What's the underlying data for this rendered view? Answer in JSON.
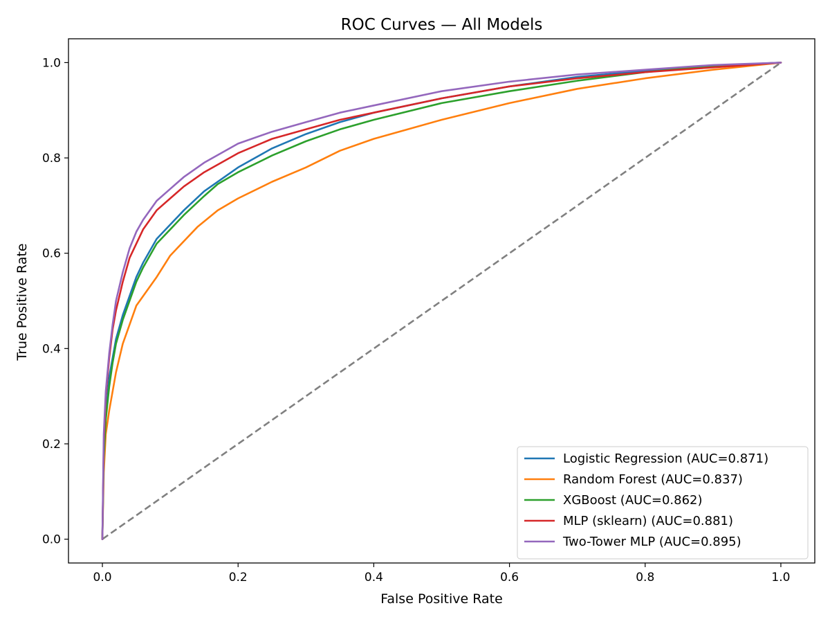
{
  "chart_data": {
    "type": "line",
    "title": "ROC Curves — All Models",
    "xlabel": "False Positive Rate",
    "ylabel": "True Positive Rate",
    "xlim": [
      -0.05,
      1.05
    ],
    "ylim": [
      -0.05,
      1.05
    ],
    "xticks": [
      0.0,
      0.2,
      0.4,
      0.6,
      0.8,
      1.0
    ],
    "yticks": [
      0.0,
      0.2,
      0.4,
      0.6,
      0.8,
      1.0
    ],
    "xtick_labels": [
      "0.0",
      "0.2",
      "0.4",
      "0.6",
      "0.8",
      "1.0"
    ],
    "ytick_labels": [
      "0.0",
      "0.2",
      "0.4",
      "0.6",
      "0.8",
      "1.0"
    ],
    "grid": false,
    "legend_position": "lower-right",
    "series": [
      {
        "name": "Logistic Regression (AUC=0.871)",
        "color": "#1f77b4",
        "x": [
          0,
          0.002,
          0.005,
          0.01,
          0.015,
          0.02,
          0.03,
          0.04,
          0.05,
          0.06,
          0.08,
          0.1,
          0.12,
          0.15,
          0.2,
          0.25,
          0.3,
          0.35,
          0.4,
          0.5,
          0.6,
          0.7,
          0.8,
          0.9,
          1.0
        ],
        "y": [
          0,
          0.18,
          0.26,
          0.34,
          0.38,
          0.42,
          0.47,
          0.51,
          0.55,
          0.58,
          0.63,
          0.66,
          0.69,
          0.73,
          0.78,
          0.82,
          0.85,
          0.875,
          0.895,
          0.925,
          0.95,
          0.97,
          0.983,
          0.993,
          1.0
        ]
      },
      {
        "name": "Random Forest (AUC=0.837)",
        "color": "#ff7f0e",
        "x": [
          0,
          0.002,
          0.005,
          0.01,
          0.015,
          0.02,
          0.03,
          0.04,
          0.05,
          0.06,
          0.08,
          0.1,
          0.14,
          0.17,
          0.2,
          0.25,
          0.3,
          0.35,
          0.4,
          0.45,
          0.5,
          0.6,
          0.7,
          0.8,
          0.9,
          1.0
        ],
        "y": [
          0,
          0.14,
          0.22,
          0.27,
          0.31,
          0.35,
          0.41,
          0.45,
          0.49,
          0.51,
          0.55,
          0.595,
          0.655,
          0.69,
          0.715,
          0.75,
          0.78,
          0.815,
          0.84,
          0.86,
          0.88,
          0.915,
          0.945,
          0.967,
          0.985,
          1.0
        ]
      },
      {
        "name": "XGBoost (AUC=0.862)",
        "color": "#2ca02c",
        "x": [
          0,
          0.002,
          0.005,
          0.01,
          0.015,
          0.02,
          0.03,
          0.04,
          0.05,
          0.06,
          0.08,
          0.1,
          0.12,
          0.15,
          0.17,
          0.2,
          0.25,
          0.3,
          0.35,
          0.4,
          0.5,
          0.6,
          0.7,
          0.8,
          0.9,
          1.0
        ],
        "y": [
          0,
          0.17,
          0.25,
          0.32,
          0.37,
          0.41,
          0.46,
          0.5,
          0.54,
          0.57,
          0.62,
          0.65,
          0.68,
          0.72,
          0.745,
          0.77,
          0.805,
          0.835,
          0.86,
          0.88,
          0.915,
          0.94,
          0.962,
          0.98,
          0.993,
          1.0
        ]
      },
      {
        "name": "MLP (sklearn) (AUC=0.881)",
        "color": "#d62728",
        "x": [
          0,
          0.002,
          0.005,
          0.01,
          0.015,
          0.02,
          0.03,
          0.04,
          0.05,
          0.06,
          0.08,
          0.1,
          0.12,
          0.15,
          0.2,
          0.25,
          0.3,
          0.35,
          0.4,
          0.5,
          0.6,
          0.7,
          0.8,
          0.9,
          1.0
        ],
        "y": [
          0,
          0.2,
          0.3,
          0.38,
          0.44,
          0.48,
          0.54,
          0.59,
          0.62,
          0.65,
          0.69,
          0.715,
          0.74,
          0.77,
          0.81,
          0.84,
          0.86,
          0.88,
          0.895,
          0.925,
          0.95,
          0.967,
          0.98,
          0.99,
          1.0
        ]
      },
      {
        "name": "Two-Tower MLP (AUC=0.895)",
        "color": "#9467bd",
        "x": [
          0,
          0.002,
          0.005,
          0.01,
          0.015,
          0.02,
          0.03,
          0.04,
          0.05,
          0.06,
          0.08,
          0.1,
          0.12,
          0.15,
          0.2,
          0.25,
          0.3,
          0.35,
          0.4,
          0.5,
          0.6,
          0.7,
          0.8,
          0.9,
          1.0
        ],
        "y": [
          0,
          0.22,
          0.31,
          0.39,
          0.45,
          0.5,
          0.56,
          0.61,
          0.645,
          0.67,
          0.71,
          0.735,
          0.76,
          0.79,
          0.83,
          0.855,
          0.875,
          0.895,
          0.91,
          0.94,
          0.96,
          0.975,
          0.985,
          0.995,
          1.0
        ]
      }
    ],
    "reference_line": {
      "color": "#808080",
      "style": "dashed",
      "x": [
        0,
        1
      ],
      "y": [
        0,
        1
      ]
    }
  }
}
